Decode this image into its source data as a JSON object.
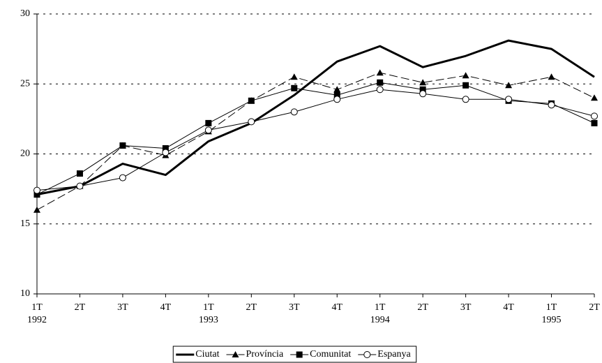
{
  "chart_data": {
    "type": "line",
    "categories": [
      "1T",
      "2T",
      "3T",
      "4T",
      "1T",
      "2T",
      "3T",
      "4T",
      "1T",
      "2T",
      "3T",
      "4T",
      "1T",
      "2T"
    ],
    "year_labels": [
      "1992",
      null,
      null,
      null,
      "1993",
      null,
      null,
      null,
      "1994",
      null,
      null,
      null,
      "1995",
      null
    ],
    "ylim": [
      10,
      30
    ],
    "yticks": [
      10,
      15,
      20,
      25,
      30
    ],
    "grid": true,
    "legend": "bottom",
    "series": [
      {
        "name": "Ciutat",
        "color": "#000000",
        "width": 3,
        "dash": "none",
        "marker": "none",
        "values": [
          17.1,
          17.7,
          19.3,
          18.5,
          20.9,
          22.2,
          24.2,
          26.6,
          27.7,
          26.2,
          27.0,
          28.1,
          27.5,
          25.5
        ]
      },
      {
        "name": "Província",
        "color": "#000000",
        "width": 1,
        "dash": "12 5",
        "marker": "triangle",
        "values": [
          16.0,
          17.7,
          20.6,
          19.9,
          21.6,
          23.8,
          25.5,
          24.6,
          25.8,
          25.1,
          25.6,
          24.9,
          25.5,
          24.0
        ]
      },
      {
        "name": "Comunitat",
        "color": "#000000",
        "width": 1,
        "dash": "none",
        "marker": "square",
        "values": [
          17.1,
          18.6,
          20.6,
          20.4,
          22.2,
          23.8,
          24.7,
          24.2,
          25.1,
          24.6,
          24.9,
          23.8,
          23.6,
          22.2
        ]
      },
      {
        "name": "Espanya",
        "color": "#000000",
        "width": 1,
        "dash": "none",
        "marker": "circle",
        "values": [
          17.4,
          17.7,
          18.3,
          20.1,
          21.7,
          22.3,
          23.0,
          23.9,
          24.6,
          24.3,
          23.9,
          23.9,
          23.5,
          22.7
        ]
      }
    ]
  }
}
